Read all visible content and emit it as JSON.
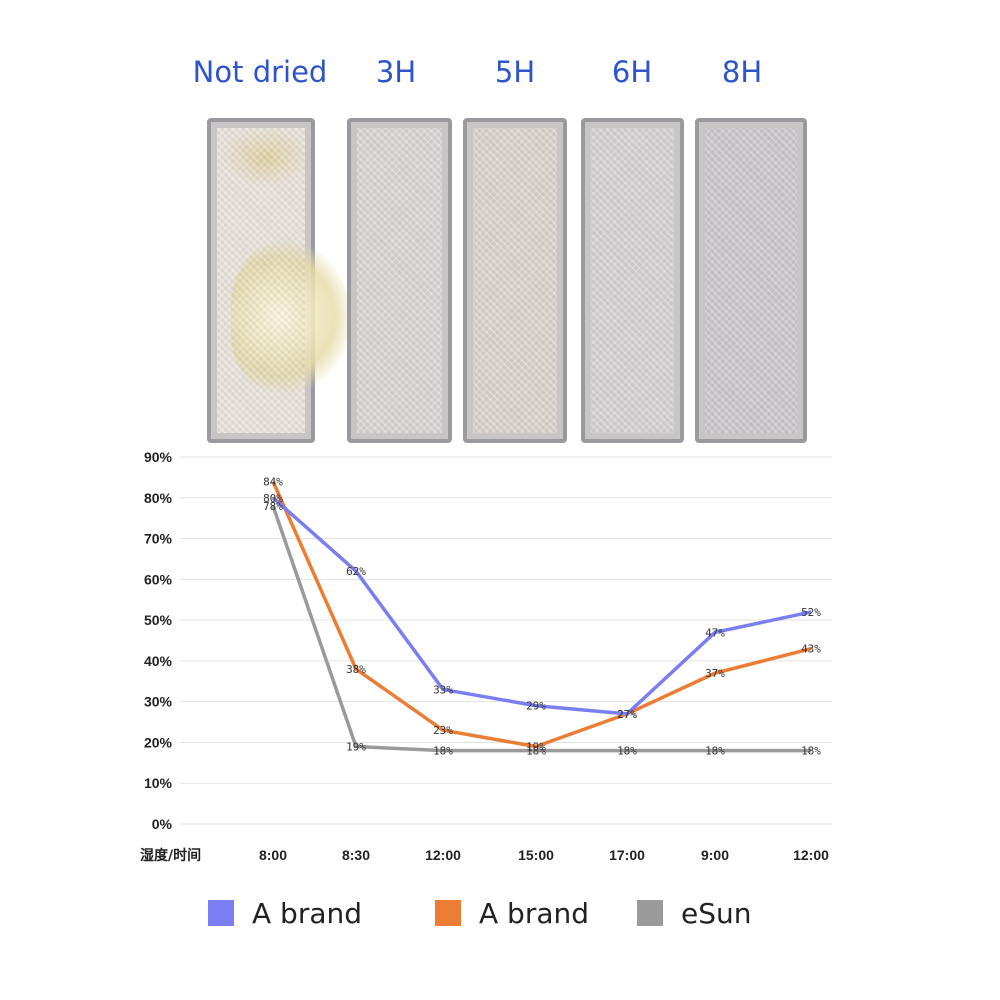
{
  "photo": {
    "labels": [
      "Not dried",
      "3H",
      "5H",
      "6H",
      "8H"
    ]
  },
  "chart_data": {
    "type": "line",
    "categories": [
      "8:00",
      "8:30",
      "12:00",
      "15:00",
      "17:00",
      "9:00",
      "12:00"
    ],
    "xlabel": "湿度/时间",
    "ylabel": "",
    "ylim": [
      0,
      90
    ],
    "yticks": [
      "0%",
      "10%",
      "20%",
      "30%",
      "40%",
      "50%",
      "60%",
      "70%",
      "80%",
      "90%"
    ],
    "grid": true,
    "legend_position": "bottom",
    "series": [
      {
        "name": "A brand",
        "color": "#7b7ef0",
        "values": [
          80,
          62,
          33,
          29,
          27,
          47,
          52
        ],
        "labels": [
          "80%",
          "62%",
          "33%",
          "29%",
          "27%",
          "47%",
          "52%"
        ]
      },
      {
        "name": "A brand",
        "color": "#ec7d35",
        "values": [
          84,
          38,
          23,
          19,
          27,
          37,
          43
        ],
        "labels": [
          "84%",
          "38%",
          "23%",
          "19%",
          "27%",
          "37%",
          "43%"
        ]
      },
      {
        "name": "eSun",
        "color": "#9a9a9a",
        "values": [
          78,
          19,
          18,
          18,
          18,
          18,
          18
        ],
        "labels": [
          "78%",
          "19%",
          "18%",
          "18%",
          "18%",
          "18%",
          "18%"
        ]
      }
    ]
  }
}
